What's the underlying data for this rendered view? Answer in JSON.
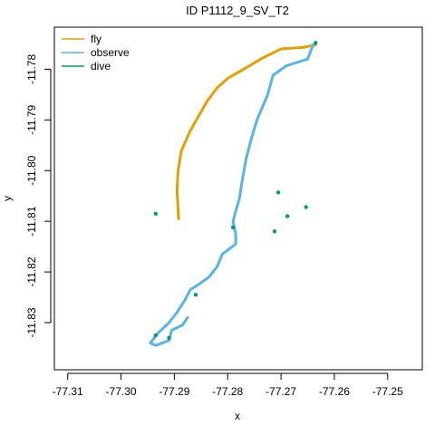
{
  "chart_data": {
    "type": "line",
    "title": "ID P1112_9_SV_T2",
    "xlabel": "x",
    "ylabel": "y",
    "xlim": [
      -77.3125,
      -77.2435
    ],
    "ylim": [
      -11.8393,
      -11.7717
    ],
    "xticks": [
      -77.31,
      -77.3,
      -77.29,
      -77.28,
      -77.27,
      -77.26,
      -77.25
    ],
    "xtick_labels": [
      "-77.31",
      "-77.30",
      "-77.29",
      "-77.28",
      "-77.27",
      "-77.26",
      "-77.25"
    ],
    "yticks": [
      -11.78,
      -11.79,
      -11.8,
      -11.81,
      -11.82,
      -11.83
    ],
    "ytick_labels": [
      "-11.78",
      "-11.79",
      "-11.80",
      "-11.81",
      "-11.82",
      "-11.83"
    ],
    "legend_position": "top-left",
    "series": [
      {
        "name": "fly",
        "color": "#E69F00",
        "points": [
          [
            -77.2635,
            -11.7752
          ],
          [
            -77.266,
            -11.7757
          ],
          [
            -77.27,
            -11.776
          ],
          [
            -77.2735,
            -11.7778
          ],
          [
            -77.277,
            -11.78
          ],
          [
            -77.28,
            -11.7818
          ],
          [
            -77.282,
            -11.7837
          ],
          [
            -77.2838,
            -11.7862
          ],
          [
            -77.2855,
            -11.7893
          ],
          [
            -77.2872,
            -11.7925
          ],
          [
            -77.2887,
            -11.7962
          ],
          [
            -77.2893,
            -11.8
          ],
          [
            -77.2895,
            -11.804
          ],
          [
            -77.2893,
            -11.8075
          ],
          [
            -77.2892,
            -11.8095
          ]
        ]
      },
      {
        "name": "observe",
        "color": "#56B4E9",
        "points": [
          [
            -77.264,
            -11.7752
          ],
          [
            -77.265,
            -11.778
          ],
          [
            -77.2665,
            -11.7785
          ],
          [
            -77.269,
            -11.7793
          ],
          [
            -77.2715,
            -11.7812
          ],
          [
            -77.2725,
            -11.785
          ],
          [
            -77.2735,
            -11.7875
          ],
          [
            -77.2745,
            -11.79
          ],
          [
            -77.2755,
            -11.7935
          ],
          [
            -77.2765,
            -11.7975
          ],
          [
            -77.2772,
            -11.8015
          ],
          [
            -77.2778,
            -11.8055
          ],
          [
            -77.2785,
            -11.808
          ],
          [
            -77.279,
            -11.81
          ],
          [
            -77.2785,
            -11.8125
          ],
          [
            -77.2785,
            -11.8145
          ],
          [
            -77.281,
            -11.8165
          ],
          [
            -77.282,
            -11.819
          ],
          [
            -77.2835,
            -11.821
          ],
          [
            -77.2855,
            -11.8225
          ],
          [
            -77.287,
            -11.8235
          ],
          [
            -77.288,
            -11.8255
          ],
          [
            -77.2895,
            -11.828
          ],
          [
            -77.291,
            -11.83
          ],
          [
            -77.293,
            -11.832
          ],
          [
            -77.2945,
            -11.834
          ],
          [
            -77.2935,
            -11.8345
          ],
          [
            -77.291,
            -11.8335
          ],
          [
            -77.2905,
            -11.8315
          ],
          [
            -77.2885,
            -11.8305
          ],
          [
            -77.2875,
            -11.829
          ]
        ]
      },
      {
        "name": "dive",
        "color": "#009E73",
        "points": [
          [
            -77.2635,
            -11.7748
          ],
          [
            -77.2688,
            -11.809
          ],
          [
            -77.2705,
            -11.8043
          ],
          [
            -77.2653,
            -11.8072
          ],
          [
            -77.2935,
            -11.8085
          ],
          [
            -77.2935,
            -11.8325
          ],
          [
            -77.291,
            -11.833
          ],
          [
            -77.286,
            -11.8245
          ],
          [
            -77.279,
            -11.8112
          ],
          [
            -77.2712,
            -11.812
          ]
        ]
      }
    ]
  }
}
